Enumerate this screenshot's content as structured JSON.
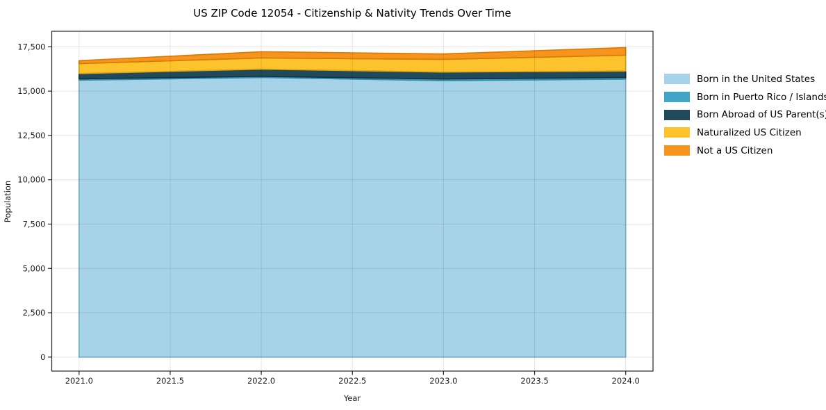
{
  "chart_data": {
    "type": "area",
    "stacked": true,
    "title": "US ZIP Code 12054 - Citizenship & Nativity Trends Over Time",
    "xlabel": "Year",
    "ylabel": "Population",
    "x": [
      2021,
      2022,
      2023,
      2024
    ],
    "series": [
      {
        "name": "Born in the United States",
        "values": [
          15620,
          15770,
          15590,
          15680
        ],
        "fill": "#a7d3e8",
        "edge": "#7fb9d6"
      },
      {
        "name": "Born in Puerto Rico / Islands",
        "values": [
          70,
          65,
          95,
          90
        ],
        "fill": "#41a6c6",
        "edge": "#2f8cab"
      },
      {
        "name": "Born Abroad of US Parent(s)",
        "values": [
          300,
          405,
          390,
          365
        ],
        "fill": "#21495c",
        "edge": "#14323f"
      },
      {
        "name": "Naturalized US Citizen",
        "values": [
          560,
          630,
          715,
          890
        ],
        "fill": "#fdc32d",
        "edge": "#e2a40e"
      },
      {
        "name": "Not a US Citizen",
        "values": [
          165,
          350,
          305,
          430
        ],
        "fill": "#f6941e",
        "edge": "#d87c06"
      }
    ],
    "xlim": [
      2020.85,
      2024.15
    ],
    "ylim": [
      -790,
      18375
    ],
    "xticks": [
      2021.0,
      2021.5,
      2022.0,
      2022.5,
      2023.0,
      2023.5,
      2024.0
    ],
    "xtick_labels": [
      "2021.0",
      "2021.5",
      "2022.0",
      "2022.5",
      "2023.0",
      "2023.5",
      "2024.0"
    ],
    "yticks": [
      0,
      2500,
      5000,
      7500,
      10000,
      12500,
      15000,
      17500
    ],
    "ytick_labels": [
      "0",
      "2,500",
      "5,000",
      "7,500",
      "10,000",
      "12,500",
      "15,000",
      "17,500"
    ],
    "grid": true,
    "legend_position": "right",
    "colors": {
      "background": "#ffffff",
      "spine": "#262626",
      "grid": "rgba(0,0,0,0.10)",
      "text": "#1a1a1a"
    }
  }
}
